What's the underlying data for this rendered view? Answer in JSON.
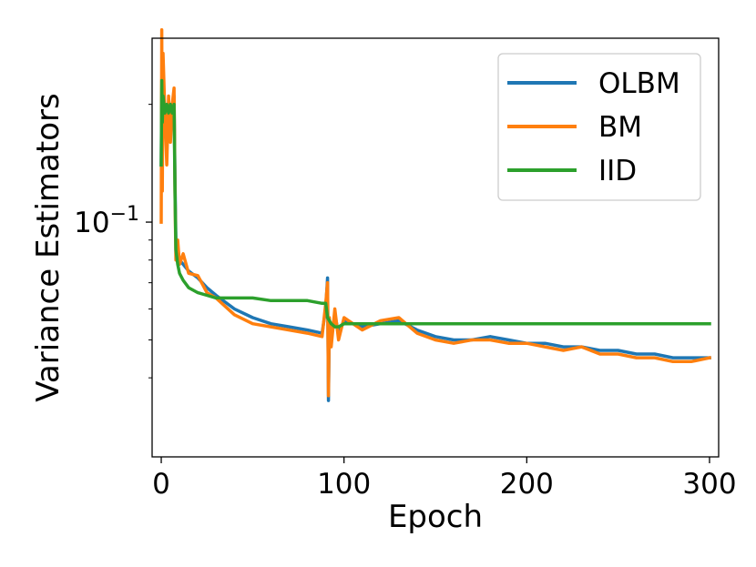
{
  "chart_data": {
    "type": "line",
    "title": "",
    "xlabel": "Epoch",
    "ylabel": "Variance Estimators",
    "xlim": [
      -5,
      305
    ],
    "ylim_log10": [
      -1.6,
      -0.53
    ],
    "yscale": "log",
    "grid": false,
    "legend_position": "top-right",
    "x_ticks": [
      {
        "value": 0,
        "label": "0"
      },
      {
        "value": 100,
        "label": "100"
      },
      {
        "value": 200,
        "label": "200"
      },
      {
        "value": 300,
        "label": "300"
      }
    ],
    "y_major_ticks": [
      {
        "value": 0.1,
        "label": "10",
        "exponent": "−1"
      }
    ],
    "y_minor_ticks": [
      0.04,
      0.05,
      0.06,
      0.07,
      0.08,
      0.09,
      0.2
    ],
    "series": [
      {
        "name": "OLBM",
        "color": "#1f77b4",
        "points": [
          [
            0,
            0.14
          ],
          [
            0.3,
            0.21
          ],
          [
            0.6,
            0.27
          ],
          [
            1,
            0.22
          ],
          [
            2,
            0.19
          ],
          [
            3,
            0.16
          ],
          [
            4,
            0.18
          ],
          [
            5,
            0.17
          ],
          [
            6,
            0.19
          ],
          [
            7,
            0.21
          ],
          [
            7.5,
            0.13
          ],
          [
            8,
            0.09
          ],
          [
            9,
            0.085
          ],
          [
            10,
            0.08
          ],
          [
            12,
            0.078
          ],
          [
            15,
            0.075
          ],
          [
            20,
            0.072
          ],
          [
            25,
            0.068
          ],
          [
            30,
            0.065
          ],
          [
            40,
            0.06
          ],
          [
            50,
            0.057
          ],
          [
            60,
            0.055
          ],
          [
            70,
            0.054
          ],
          [
            80,
            0.053
          ],
          [
            88,
            0.052
          ],
          [
            90,
            0.06
          ],
          [
            91,
            0.072
          ],
          [
            91.5,
            0.035
          ],
          [
            92,
            0.055
          ],
          [
            93,
            0.05
          ],
          [
            95,
            0.058
          ],
          [
            97,
            0.052
          ],
          [
            100,
            0.056
          ],
          [
            110,
            0.054
          ],
          [
            120,
            0.055
          ],
          [
            130,
            0.056
          ],
          [
            140,
            0.053
          ],
          [
            150,
            0.051
          ],
          [
            160,
            0.05
          ],
          [
            170,
            0.05
          ],
          [
            180,
            0.051
          ],
          [
            190,
            0.05
          ],
          [
            200,
            0.049
          ],
          [
            210,
            0.049
          ],
          [
            220,
            0.048
          ],
          [
            230,
            0.048
          ],
          [
            240,
            0.047
          ],
          [
            250,
            0.047
          ],
          [
            260,
            0.046
          ],
          [
            270,
            0.046
          ],
          [
            280,
            0.045
          ],
          [
            290,
            0.045
          ],
          [
            300,
            0.045
          ]
        ]
      },
      {
        "name": "BM",
        "color": "#ff7f0e",
        "points": [
          [
            0,
            0.1
          ],
          [
            0.3,
            0.31
          ],
          [
            0.6,
            0.12
          ],
          [
            1,
            0.27
          ],
          [
            2,
            0.19
          ],
          [
            3,
            0.14
          ],
          [
            4,
            0.21
          ],
          [
            5,
            0.16
          ],
          [
            6,
            0.2
          ],
          [
            7,
            0.22
          ],
          [
            7.5,
            0.12
          ],
          [
            8,
            0.08
          ],
          [
            9,
            0.09
          ],
          [
            10,
            0.078
          ],
          [
            12,
            0.083
          ],
          [
            15,
            0.074
          ],
          [
            20,
            0.073
          ],
          [
            25,
            0.066
          ],
          [
            30,
            0.064
          ],
          [
            40,
            0.058
          ],
          [
            50,
            0.055
          ],
          [
            60,
            0.054
          ],
          [
            70,
            0.053
          ],
          [
            80,
            0.052
          ],
          [
            88,
            0.051
          ],
          [
            90,
            0.062
          ],
          [
            91,
            0.07
          ],
          [
            91.5,
            0.036
          ],
          [
            92,
            0.057
          ],
          [
            93,
            0.048
          ],
          [
            95,
            0.06
          ],
          [
            97,
            0.05
          ],
          [
            100,
            0.057
          ],
          [
            110,
            0.053
          ],
          [
            120,
            0.056
          ],
          [
            130,
            0.057
          ],
          [
            140,
            0.052
          ],
          [
            150,
            0.05
          ],
          [
            160,
            0.049
          ],
          [
            170,
            0.05
          ],
          [
            180,
            0.05
          ],
          [
            190,
            0.049
          ],
          [
            200,
            0.049
          ],
          [
            210,
            0.048
          ],
          [
            220,
            0.047
          ],
          [
            230,
            0.048
          ],
          [
            240,
            0.046
          ],
          [
            250,
            0.046
          ],
          [
            260,
            0.045
          ],
          [
            270,
            0.045
          ],
          [
            280,
            0.044
          ],
          [
            290,
            0.044
          ],
          [
            300,
            0.045
          ]
        ]
      },
      {
        "name": "IID",
        "color": "#2ca02c",
        "points": [
          [
            0,
            0.14
          ],
          [
            0.3,
            0.23
          ],
          [
            0.6,
            0.18
          ],
          [
            1,
            0.21
          ],
          [
            2,
            0.19
          ],
          [
            3,
            0.2
          ],
          [
            4,
            0.19
          ],
          [
            5,
            0.2
          ],
          [
            6,
            0.19
          ],
          [
            7,
            0.2
          ],
          [
            7.5,
            0.12
          ],
          [
            8,
            0.085
          ],
          [
            9,
            0.078
          ],
          [
            10,
            0.074
          ],
          [
            12,
            0.071
          ],
          [
            15,
            0.068
          ],
          [
            20,
            0.066
          ],
          [
            25,
            0.065
          ],
          [
            30,
            0.064
          ],
          [
            40,
            0.064
          ],
          [
            50,
            0.064
          ],
          [
            60,
            0.063
          ],
          [
            70,
            0.063
          ],
          [
            80,
            0.063
          ],
          [
            88,
            0.062
          ],
          [
            90,
            0.062
          ],
          [
            91,
            0.057
          ],
          [
            92,
            0.056
          ],
          [
            93,
            0.055
          ],
          [
            95,
            0.054
          ],
          [
            97,
            0.054
          ],
          [
            100,
            0.055
          ],
          [
            110,
            0.055
          ],
          [
            120,
            0.055
          ],
          [
            130,
            0.055
          ],
          [
            140,
            0.055
          ],
          [
            150,
            0.055
          ],
          [
            160,
            0.055
          ],
          [
            170,
            0.055
          ],
          [
            180,
            0.055
          ],
          [
            190,
            0.055
          ],
          [
            200,
            0.055
          ],
          [
            210,
            0.055
          ],
          [
            220,
            0.055
          ],
          [
            230,
            0.055
          ],
          [
            240,
            0.055
          ],
          [
            250,
            0.055
          ],
          [
            260,
            0.055
          ],
          [
            270,
            0.055
          ],
          [
            280,
            0.055
          ],
          [
            290,
            0.055
          ],
          [
            300,
            0.055
          ]
        ]
      }
    ]
  }
}
